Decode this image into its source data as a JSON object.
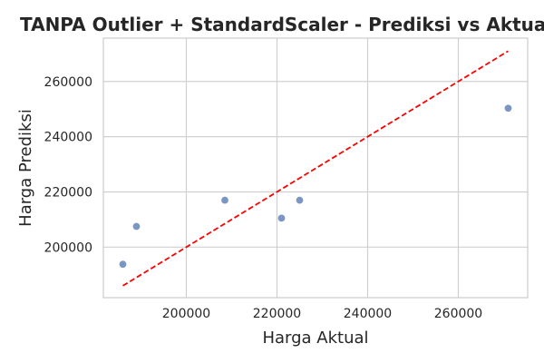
{
  "chart_data": {
    "type": "scatter",
    "title": "TANPA Outlier + StandardScaler - Prediksi vs Aktual",
    "xlabel": "Harga Aktual",
    "ylabel": "Harga Prediksi",
    "xlim": [
      181700,
      275300
    ],
    "ylim": [
      181700,
      275700
    ],
    "xticks": [
      200000,
      220000,
      240000,
      260000
    ],
    "yticks": [
      200000,
      220000,
      240000,
      260000
    ],
    "grid": true,
    "points": [
      {
        "x": 186000,
        "y": 193800
      },
      {
        "x": 189000,
        "y": 207500
      },
      {
        "x": 208500,
        "y": 217000
      },
      {
        "x": 221000,
        "y": 210500
      },
      {
        "x": 225000,
        "y": 217000
      },
      {
        "x": 271000,
        "y": 250300
      }
    ],
    "reference_line": {
      "from": [
        186000,
        186000
      ],
      "to": [
        271000,
        271000
      ],
      "style": "dashed"
    },
    "colors": {
      "points": "#7b96c3",
      "reference_line": "#ff0000",
      "grid": "#d0d0d0",
      "frame": "#cccccc"
    }
  }
}
